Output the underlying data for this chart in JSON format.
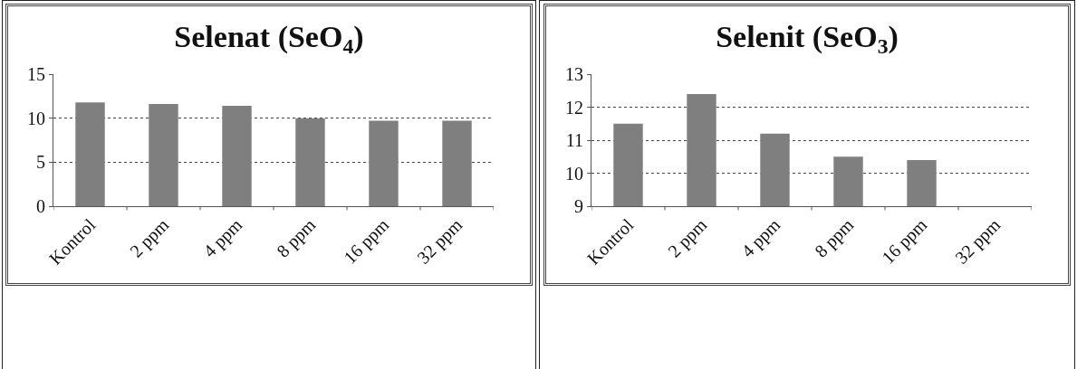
{
  "chart_data": [
    {
      "type": "bar",
      "title": "Selenat (SeO$_{4}$)",
      "categories": [
        "Kontrol",
        "2 ppm",
        "4 ppm",
        "8 ppm",
        "16 ppm",
        "32 ppm"
      ],
      "values": [
        11.8,
        11.6,
        11.4,
        10.0,
        9.7,
        9.7
      ],
      "color": "#7f7f7f",
      "ylim": [
        0,
        15
      ],
      "yticks": [
        0,
        5,
        10,
        15
      ],
      "grid": "y"
    },
    {
      "type": "bar",
      "title": "Selenit (SeO$_{3}$)",
      "categories": [
        "Kontrol",
        "2 ppm",
        "4 ppm",
        "8 ppm",
        "16 ppm",
        "32 ppm"
      ],
      "values": [
        11.5,
        12.4,
        11.2,
        10.5,
        10.4,
        null
      ],
      "color": "#7f7f7f",
      "ylim": [
        9,
        13
      ],
      "yticks": [
        9,
        10,
        11,
        12,
        13
      ],
      "grid": "y"
    }
  ]
}
